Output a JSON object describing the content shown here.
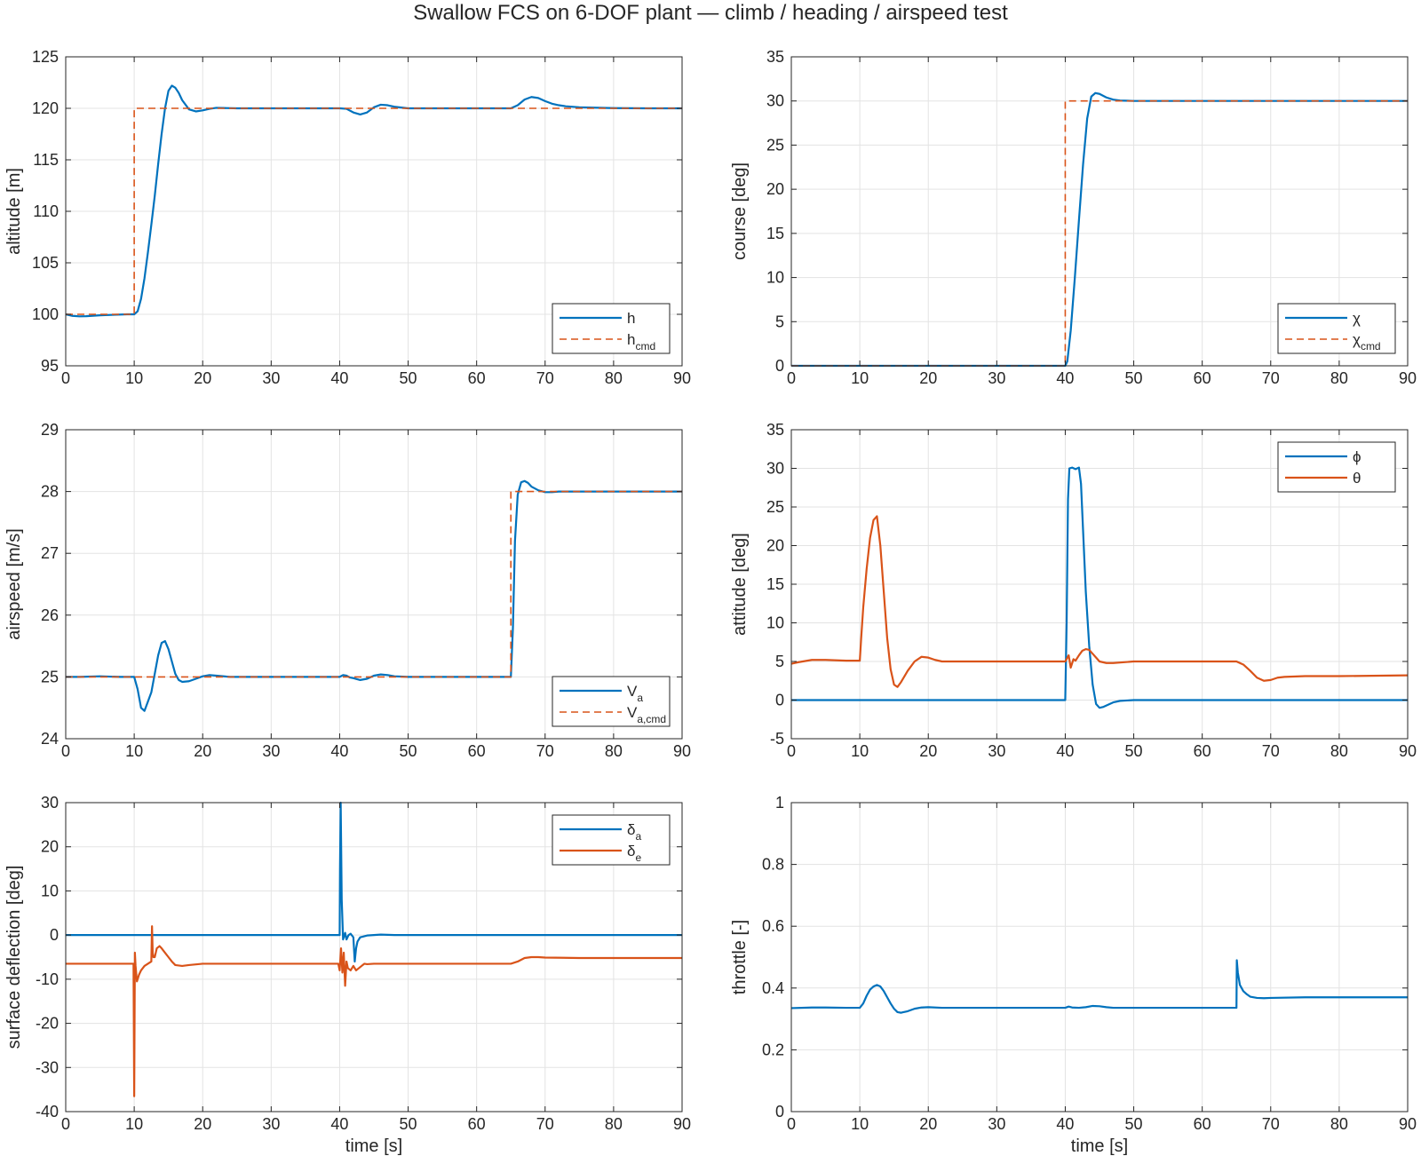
{
  "figure": {
    "title": "Swallow FCS on 6-DOF plant — climb / heading / airspeed test",
    "colors": {
      "blue": "#0072BD",
      "orange": "#D95319",
      "grid": "#e3e3e3",
      "axis": "#262626"
    }
  },
  "chart_data": [
    {
      "id": "altitude",
      "type": "line",
      "ylabel": "altitude [m]",
      "xlabel": "",
      "xlim": [
        0,
        90
      ],
      "ylim": [
        95,
        125
      ],
      "xticks": [
        0,
        10,
        20,
        30,
        40,
        50,
        60,
        70,
        80,
        90
      ],
      "yticks": [
        95,
        100,
        105,
        110,
        115,
        120,
        125
      ],
      "grid": true,
      "legend": {
        "position": "bottom-right",
        "entries": [
          {
            "base": "h",
            "sub": ""
          },
          {
            "base": "h",
            "sub": "cmd"
          }
        ]
      },
      "series": [
        {
          "color": "blue",
          "style": "solid",
          "x": [
            0,
            1,
            2,
            3,
            5,
            7,
            9,
            10,
            10.5,
            11,
            11.5,
            12,
            12.5,
            13,
            13.5,
            14,
            14.5,
            15,
            15.5,
            16,
            16.5,
            17,
            18,
            19,
            20,
            21,
            22,
            23,
            25,
            30,
            35,
            38,
            40,
            41,
            42,
            43,
            44,
            45,
            46,
            47,
            48,
            50,
            55,
            60,
            63,
            65,
            66,
            67,
            68,
            69,
            70,
            71,
            72,
            73,
            75,
            80,
            85,
            90
          ],
          "y": [
            100,
            99.85,
            99.8,
            99.82,
            99.9,
            99.95,
            100,
            100,
            100.3,
            101.5,
            103.5,
            106,
            108.7,
            111.5,
            114.6,
            117.5,
            120,
            121.7,
            122.2,
            122,
            121.5,
            120.8,
            119.9,
            119.7,
            119.8,
            119.95,
            120.05,
            120.03,
            120,
            120,
            120,
            120,
            120,
            119.95,
            119.6,
            119.4,
            119.6,
            120.1,
            120.35,
            120.3,
            120.15,
            120,
            120,
            120,
            120,
            120,
            120.3,
            120.85,
            121.1,
            121,
            120.7,
            120.45,
            120.3,
            120.2,
            120.1,
            120.02,
            120,
            120
          ]
        },
        {
          "color": "orange",
          "style": "dashed",
          "x": [
            0,
            10,
            10,
            90
          ],
          "y": [
            100,
            100,
            120,
            120
          ]
        }
      ]
    },
    {
      "id": "course",
      "type": "line",
      "ylabel": "course [deg]",
      "xlabel": "",
      "xlim": [
        0,
        90
      ],
      "ylim": [
        0,
        35
      ],
      "xticks": [
        0,
        10,
        20,
        30,
        40,
        50,
        60,
        70,
        80,
        90
      ],
      "yticks": [
        0,
        5,
        10,
        15,
        20,
        25,
        30,
        35
      ],
      "grid": true,
      "legend": {
        "position": "bottom-right",
        "entries": [
          {
            "base": "χ",
            "sub": ""
          },
          {
            "base": "χ",
            "sub": "cmd"
          }
        ]
      },
      "series": [
        {
          "color": "blue",
          "style": "solid",
          "x": [
            0,
            40,
            40.3,
            40.8,
            41.4,
            42,
            42.6,
            43.2,
            43.8,
            44.4,
            45,
            46,
            47,
            48,
            50,
            55,
            90
          ],
          "y": [
            0,
            0,
            0.5,
            4,
            10,
            16.5,
            22.8,
            28,
            30.5,
            30.9,
            30.8,
            30.4,
            30.15,
            30.05,
            30,
            30,
            30
          ]
        },
        {
          "color": "orange",
          "style": "dashed",
          "x": [
            0,
            40,
            40,
            90
          ],
          "y": [
            0,
            0,
            30,
            30
          ]
        }
      ]
    },
    {
      "id": "airspeed",
      "type": "line",
      "ylabel": "airspeed [m/s]",
      "xlabel": "",
      "xlim": [
        0,
        90
      ],
      "ylim": [
        24,
        29
      ],
      "xticks": [
        0,
        10,
        20,
        30,
        40,
        50,
        60,
        70,
        80,
        90
      ],
      "yticks": [
        24,
        25,
        26,
        27,
        28,
        29
      ],
      "grid": true,
      "legend": {
        "position": "bottom-right",
        "entries": [
          {
            "base": "V",
            "sub": "a"
          },
          {
            "base": "V",
            "sub": "a,cmd"
          }
        ]
      },
      "series": [
        {
          "color": "blue",
          "style": "solid",
          "x": [
            0,
            2,
            5,
            8,
            10,
            10.5,
            11,
            11.5,
            12,
            12.5,
            13,
            13.5,
            14,
            14.5,
            15,
            15.5,
            16,
            16.5,
            17,
            18,
            19,
            20,
            21,
            22,
            24,
            30,
            35,
            40,
            40.5,
            41,
            41.5,
            42,
            43,
            44,
            45,
            46,
            47,
            48,
            50,
            55,
            60,
            65,
            65.3,
            65.6,
            66,
            66.5,
            67,
            67.5,
            68,
            69,
            70,
            71,
            72,
            75,
            80,
            90
          ],
          "y": [
            25,
            25,
            25.01,
            25,
            25,
            24.8,
            24.5,
            24.45,
            24.6,
            24.75,
            25.05,
            25.35,
            25.55,
            25.58,
            25.45,
            25.25,
            25.05,
            24.95,
            24.92,
            24.93,
            24.97,
            25.01,
            25.03,
            25.02,
            25,
            25,
            25,
            25,
            25.03,
            25.02,
            24.99,
            24.98,
            24.95,
            24.97,
            25.02,
            25.04,
            25.03,
            25.01,
            25,
            25,
            25,
            25,
            25.8,
            27.2,
            27.95,
            28.15,
            28.17,
            28.14,
            28.08,
            28.02,
            27.99,
            27.99,
            28,
            28,
            28,
            28
          ]
        },
        {
          "color": "orange",
          "style": "dashed",
          "x": [
            0,
            65,
            65,
            90
          ],
          "y": [
            25,
            25,
            28,
            28
          ]
        }
      ]
    },
    {
      "id": "attitude",
      "type": "line",
      "ylabel": "attitude [deg]",
      "xlabel": "",
      "xlim": [
        0,
        90
      ],
      "ylim": [
        -5,
        35
      ],
      "xticks": [
        0,
        10,
        20,
        30,
        40,
        50,
        60,
        70,
        80,
        90
      ],
      "yticks": [
        -5,
        0,
        5,
        10,
        15,
        20,
        25,
        30,
        35
      ],
      "grid": true,
      "legend": {
        "position": "top-right",
        "entries": [
          {
            "base": "ϕ",
            "sub": ""
          },
          {
            "base": "θ",
            "sub": ""
          }
        ]
      },
      "series": [
        {
          "color": "blue",
          "style": "solid",
          "x": [
            0,
            40,
            40.2,
            40.4,
            40.6,
            41,
            41.5,
            42,
            42.3,
            42.6,
            43,
            43.5,
            44,
            44.5,
            45,
            45.5,
            46,
            47,
            48,
            50,
            55,
            90
          ],
          "y": [
            0,
            0,
            10,
            26,
            30,
            30.1,
            29.9,
            30.1,
            28,
            22,
            14,
            7,
            2,
            -0.5,
            -1,
            -0.9,
            -0.7,
            -0.3,
            -0.1,
            0,
            0,
            0
          ]
        },
        {
          "color": "orange",
          "style": "solid",
          "x": [
            0,
            1,
            3,
            5,
            8,
            10,
            10.2,
            10.5,
            11,
            11.5,
            12,
            12.5,
            13,
            13.5,
            14,
            14.5,
            15,
            15.5,
            16,
            17,
            18,
            19,
            20,
            21,
            22,
            25,
            30,
            35,
            40,
            40.5,
            40.8,
            41.2,
            41.5,
            42,
            42.5,
            43,
            43.5,
            44,
            44.5,
            45,
            46,
            47,
            50,
            55,
            60,
            65,
            66,
            67,
            68,
            69,
            70,
            71,
            72,
            75,
            80,
            90
          ],
          "y": [
            4.7,
            4.9,
            5.2,
            5.2,
            5.1,
            5.1,
            8,
            12,
            17,
            21,
            23.3,
            23.8,
            20,
            14,
            8,
            4,
            2,
            1.7,
            2.3,
            3.8,
            5,
            5.6,
            5.5,
            5.2,
            5,
            5,
            5,
            5,
            5,
            5.8,
            4.2,
            5.3,
            5.1,
            5.8,
            6.4,
            6.6,
            6.5,
            6,
            5.5,
            5,
            4.8,
            4.8,
            5,
            5,
            5,
            5,
            4.6,
            3.8,
            2.9,
            2.5,
            2.6,
            2.9,
            3,
            3.1,
            3.1,
            3.2
          ]
        }
      ]
    },
    {
      "id": "surfaces",
      "type": "line",
      "ylabel": "surface deflection [deg]",
      "xlabel": "time [s]",
      "xlim": [
        0,
        90
      ],
      "ylim": [
        -40,
        30
      ],
      "xticks": [
        0,
        10,
        20,
        30,
        40,
        50,
        60,
        70,
        80,
        90
      ],
      "yticks": [
        -40,
        -30,
        -20,
        -10,
        0,
        10,
        20,
        30
      ],
      "grid": true,
      "legend": {
        "position": "top-right",
        "entries": [
          {
            "base": "δ",
            "sub": "a"
          },
          {
            "base": "δ",
            "sub": "e"
          }
        ]
      },
      "series": [
        {
          "color": "blue",
          "style": "solid",
          "x": [
            0,
            40,
            40.05,
            40.15,
            40.3,
            40.5,
            40.8,
            41,
            41.3,
            41.6,
            42,
            42.2,
            42.4,
            42.6,
            43,
            44,
            45,
            46,
            48,
            50,
            90
          ],
          "y": [
            0,
            0,
            15,
            30,
            8,
            -1,
            0.5,
            -1,
            0,
            0.3,
            -0.5,
            -6,
            -3,
            -1.5,
            -0.5,
            -0.1,
            0,
            0.1,
            0,
            0,
            0
          ]
        },
        {
          "color": "orange",
          "style": "solid",
          "x": [
            0,
            5,
            9.9,
            10,
            10.1,
            10.2,
            10.4,
            10.7,
            11,
            11.5,
            12,
            12.5,
            12.6,
            12.7,
            12.8,
            13,
            13.3,
            13.7,
            14,
            14.5,
            15,
            15.5,
            16,
            17,
            18,
            20,
            25,
            30,
            35,
            39.8,
            40,
            40.2,
            40.4,
            40.6,
            40.8,
            41,
            41.2,
            41.6,
            42,
            42.4,
            42.8,
            43.2,
            43.6,
            44,
            45,
            50,
            55,
            60,
            65,
            66,
            67,
            68,
            69,
            70,
            75,
            80,
            90
          ],
          "y": [
            -6.5,
            -6.5,
            -6.5,
            -36.5,
            -4,
            -7,
            -10.5,
            -9,
            -8,
            -7,
            -6.5,
            -6,
            2,
            -4,
            -5,
            -5,
            -3,
            -2.5,
            -3,
            -4,
            -5,
            -6,
            -6.8,
            -7,
            -6.8,
            -6.5,
            -6.5,
            -6.5,
            -6.5,
            -6.5,
            -8,
            -3,
            -8.5,
            -4,
            -11.5,
            -6,
            -7.5,
            -8,
            -7,
            -8,
            -7.5,
            -7,
            -6.5,
            -6.6,
            -6.5,
            -6.5,
            -6.5,
            -6.5,
            -6.5,
            -6,
            -5.2,
            -5,
            -5,
            -5.1,
            -5.2,
            -5.2,
            -5.2
          ]
        }
      ]
    },
    {
      "id": "throttle",
      "type": "line",
      "ylabel": "throttle [-]",
      "xlabel": "time [s]",
      "xlim": [
        0,
        90
      ],
      "ylim": [
        0,
        1
      ],
      "xticks": [
        0,
        10,
        20,
        30,
        40,
        50,
        60,
        70,
        80,
        90
      ],
      "yticks": [
        0,
        0.2,
        0.4,
        0.6,
        0.8,
        1
      ],
      "grid": true,
      "legend": null,
      "series": [
        {
          "color": "blue",
          "style": "solid",
          "x": [
            0,
            3,
            5,
            8,
            10,
            10.5,
            11,
            11.5,
            12,
            12.5,
            13,
            13.5,
            14,
            14.5,
            15,
            15.5,
            16,
            17,
            18,
            19,
            20,
            22,
            25,
            30,
            35,
            40,
            40.5,
            41,
            42,
            43,
            44,
            45,
            46,
            47,
            50,
            55,
            60,
            65,
            65.05,
            65.2,
            65.5,
            66,
            66.5,
            67,
            68,
            69,
            70,
            75,
            80,
            90
          ],
          "y": [
            0.335,
            0.337,
            0.337,
            0.336,
            0.336,
            0.35,
            0.375,
            0.395,
            0.405,
            0.41,
            0.405,
            0.39,
            0.37,
            0.35,
            0.333,
            0.322,
            0.32,
            0.325,
            0.333,
            0.337,
            0.338,
            0.336,
            0.336,
            0.336,
            0.336,
            0.336,
            0.34,
            0.337,
            0.336,
            0.338,
            0.342,
            0.341,
            0.338,
            0.336,
            0.336,
            0.336,
            0.336,
            0.336,
            0.49,
            0.45,
            0.41,
            0.39,
            0.38,
            0.372,
            0.368,
            0.367,
            0.368,
            0.37,
            0.37,
            0.37
          ]
        }
      ]
    }
  ]
}
